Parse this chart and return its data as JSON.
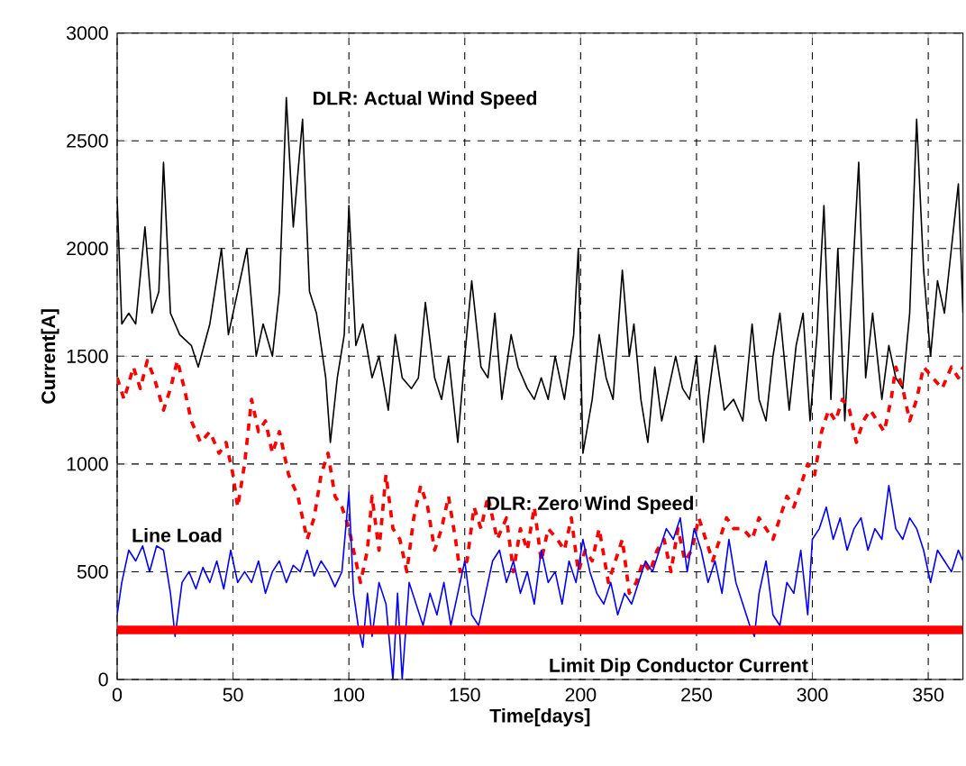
{
  "chart_data": {
    "type": "line",
    "xlabel": "Time[days]",
    "ylabel": "Current[A]",
    "xlim": [
      0,
      365
    ],
    "ylim": [
      0,
      3000
    ],
    "xticks": [
      0,
      50,
      100,
      150,
      200,
      250,
      300,
      350
    ],
    "yticks": [
      0,
      500,
      1000,
      1500,
      2000,
      2500,
      3000
    ],
    "grid": true,
    "series": [
      {
        "name": "DLR: Actual Wind Speed",
        "color": "#000000",
        "line_style": "solid",
        "x": [
          0,
          2,
          5,
          8,
          12,
          15,
          18,
          20,
          23,
          27,
          32,
          35,
          40,
          45,
          48,
          52,
          56,
          60,
          63,
          67,
          70,
          73,
          76,
          80,
          83,
          86,
          90,
          92,
          95,
          98,
          100,
          103,
          106,
          110,
          113,
          117,
          120,
          123,
          127,
          130,
          133,
          137,
          140,
          143,
          147,
          150,
          153,
          157,
          160,
          163,
          166,
          170,
          173,
          177,
          180,
          183,
          186,
          189,
          193,
          197,
          199,
          201,
          205,
          208,
          211,
          214,
          218,
          221,
          223,
          226,
          229,
          232,
          235,
          238,
          241,
          244,
          247,
          250,
          253,
          255,
          258,
          262,
          266,
          270,
          274,
          277,
          280,
          283,
          286,
          290,
          293,
          296,
          299,
          302,
          305,
          308,
          311,
          314,
          317,
          320,
          323,
          326,
          330,
          333,
          336,
          339,
          342,
          345,
          348,
          351,
          354,
          357,
          360,
          363,
          365
        ],
        "values": [
          2230,
          1650,
          1700,
          1650,
          2100,
          1700,
          1800,
          2400,
          1700,
          1600,
          1550,
          1450,
          1650,
          2000,
          1600,
          1800,
          2000,
          1500,
          1650,
          1500,
          1800,
          2700,
          2100,
          2600,
          1800,
          1700,
          1400,
          1100,
          1400,
          1600,
          2200,
          1550,
          1650,
          1400,
          1500,
          1250,
          1600,
          1400,
          1350,
          1400,
          1750,
          1400,
          1300,
          1500,
          1100,
          1500,
          1850,
          1450,
          1400,
          1700,
          1300,
          1600,
          1450,
          1350,
          1300,
          1400,
          1300,
          1500,
          1300,
          1600,
          2000,
          1050,
          1300,
          1600,
          1400,
          1300,
          1900,
          1500,
          1650,
          1300,
          1100,
          1450,
          1200,
          1350,
          1500,
          1350,
          1300,
          1500,
          1100,
          1300,
          1550,
          1250,
          1300,
          1200,
          1650,
          1300,
          1200,
          1500,
          1700,
          1250,
          1550,
          1700,
          1200,
          1600,
          2200,
          1300,
          2000,
          1200,
          1800,
          2400,
          1400,
          1700,
          1300,
          1550,
          1400,
          1350,
          1700,
          2600,
          1900,
          1500,
          1850,
          1700,
          2000,
          2300,
          1700
        ]
      },
      {
        "name": "DLR: Zero Wind Speed",
        "color": "#ff0000",
        "line_style": "dashed",
        "x": [
          0,
          3,
          7,
          10,
          13,
          16,
          20,
          23,
          26,
          29,
          32,
          36,
          40,
          44,
          47,
          50,
          52,
          55,
          58,
          61,
          64,
          67,
          70,
          74,
          78,
          82,
          85,
          88,
          91,
          94,
          97,
          100,
          103,
          105,
          108,
          110,
          113,
          116,
          119,
          122,
          125,
          128,
          131,
          134,
          137,
          140,
          143,
          146,
          148,
          151,
          154,
          157,
          160,
          164,
          168,
          171,
          174,
          177,
          180,
          183,
          186,
          190,
          193,
          196,
          199,
          202,
          205,
          208,
          212,
          215,
          218,
          221,
          224,
          227,
          230,
          233,
          236,
          239,
          242,
          245,
          248,
          251,
          254,
          257,
          260,
          263,
          266,
          270,
          274,
          277,
          280,
          283,
          286,
          289,
          292,
          295,
          298,
          301,
          304,
          307,
          310,
          313,
          316,
          319,
          322,
          325,
          328,
          331,
          334,
          336,
          339,
          342,
          345,
          348,
          352,
          356,
          360,
          363,
          365
        ],
        "values": [
          1400,
          1300,
          1450,
          1350,
          1480,
          1400,
          1250,
          1350,
          1480,
          1350,
          1200,
          1100,
          1150,
          1050,
          1100,
          950,
          800,
          1000,
          1300,
          1150,
          1200,
          1050,
          1150,
          950,
          850,
          650,
          750,
          950,
          1050,
          850,
          800,
          700,
          550,
          450,
          600,
          850,
          600,
          950,
          700,
          650,
          500,
          750,
          900,
          800,
          600,
          700,
          850,
          650,
          500,
          550,
          800,
          700,
          850,
          650,
          750,
          500,
          700,
          600,
          800,
          550,
          700,
          650,
          600,
          750,
          500,
          600,
          550,
          700,
          450,
          550,
          650,
          400,
          450,
          550,
          500,
          600,
          650,
          500,
          700,
          550,
          600,
          750,
          650,
          550,
          650,
          750,
          700,
          700,
          650,
          750,
          700,
          650,
          750,
          850,
          800,
          900,
          1000,
          950,
          1150,
          1250,
          1200,
          1300,
          1250,
          1100,
          1200,
          1250,
          1200,
          1150,
          1300,
          1450,
          1350,
          1200,
          1300,
          1450,
          1400,
          1350,
          1450,
          1400,
          1450
        ]
      },
      {
        "name": "Line Load",
        "color": "#0000ff",
        "line_style": "solid",
        "x": [
          0,
          2,
          5,
          8,
          11,
          14,
          17,
          20,
          23,
          25,
          28,
          31,
          34,
          37,
          40,
          43,
          46,
          49,
          52,
          55,
          58,
          61,
          64,
          67,
          70,
          73,
          76,
          79,
          82,
          85,
          88,
          91,
          94,
          97,
          100,
          102,
          104,
          106,
          108,
          110,
          113,
          116,
          119,
          121,
          123,
          126,
          129,
          132,
          135,
          138,
          141,
          144,
          147,
          150,
          153,
          156,
          159,
          162,
          165,
          168,
          171,
          174,
          177,
          180,
          183,
          186,
          189,
          192,
          195,
          198,
          201,
          204,
          207,
          210,
          213,
          216,
          219,
          222,
          225,
          228,
          231,
          234,
          237,
          240,
          243,
          246,
          249,
          252,
          255,
          258,
          261,
          264,
          267,
          270,
          273,
          275,
          277,
          280,
          283,
          286,
          289,
          292,
          295,
          298,
          300,
          303,
          306,
          309,
          312,
          315,
          318,
          321,
          324,
          327,
          330,
          333,
          336,
          339,
          342,
          345,
          348,
          351,
          354,
          357,
          360,
          363,
          365
        ],
        "values": [
          300,
          450,
          600,
          550,
          620,
          500,
          620,
          600,
          400,
          200,
          450,
          500,
          420,
          520,
          450,
          550,
          420,
          600,
          450,
          500,
          450,
          550,
          400,
          500,
          550,
          450,
          530,
          500,
          600,
          480,
          550,
          500,
          430,
          500,
          870,
          400,
          250,
          150,
          400,
          200,
          450,
          350,
          0,
          400,
          0,
          450,
          350,
          250,
          400,
          300,
          450,
          250,
          400,
          550,
          300,
          250,
          400,
          550,
          600,
          450,
          550,
          400,
          500,
          350,
          600,
          450,
          500,
          350,
          550,
          450,
          650,
          500,
          400,
          350,
          450,
          300,
          400,
          350,
          450,
          550,
          500,
          600,
          700,
          650,
          750,
          500,
          700,
          600,
          450,
          550,
          400,
          650,
          450,
          350,
          250,
          200,
          400,
          550,
          300,
          250,
          450,
          400,
          600,
          300,
          650,
          700,
          800,
          650,
          750,
          600,
          700,
          750,
          600,
          700,
          650,
          900,
          700,
          650,
          750,
          700,
          600,
          450,
          600,
          550,
          500,
          600,
          550
        ]
      }
    ],
    "ref_lines": [
      {
        "axis": "y",
        "value": 230,
        "label": "Limit Dip Conductor Current",
        "color": "#ff0000",
        "line_style": "solid"
      }
    ]
  }
}
